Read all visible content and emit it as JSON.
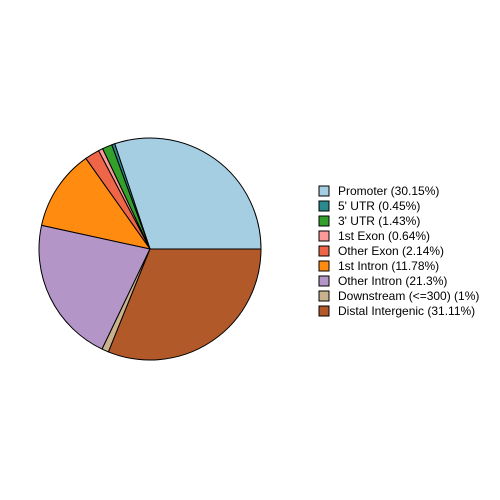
{
  "chart_data": {
    "type": "pie",
    "categories": [
      "Promoter (30.15%)",
      "5' UTR (0.45%)",
      "3' UTR (1.43%)",
      "1st Exon (0.64%)",
      "Other Exon (2.14%)",
      "1st Intron (11.78%)",
      "Other Intron (21.3%)",
      "Downstream (<=300) (1%)",
      "Distal Intergenic (31.11%)"
    ],
    "values": [
      30.15,
      0.45,
      1.43,
      0.64,
      2.14,
      11.78,
      21.3,
      1,
      31.11
    ],
    "colors": [
      "#a6cee3",
      "#2b8a8e",
      "#33a02c",
      "#fb9a99",
      "#ef6548",
      "#ff8c10",
      "#b395c8",
      "#c9b28d",
      "#b15928"
    ],
    "legend": "right"
  }
}
